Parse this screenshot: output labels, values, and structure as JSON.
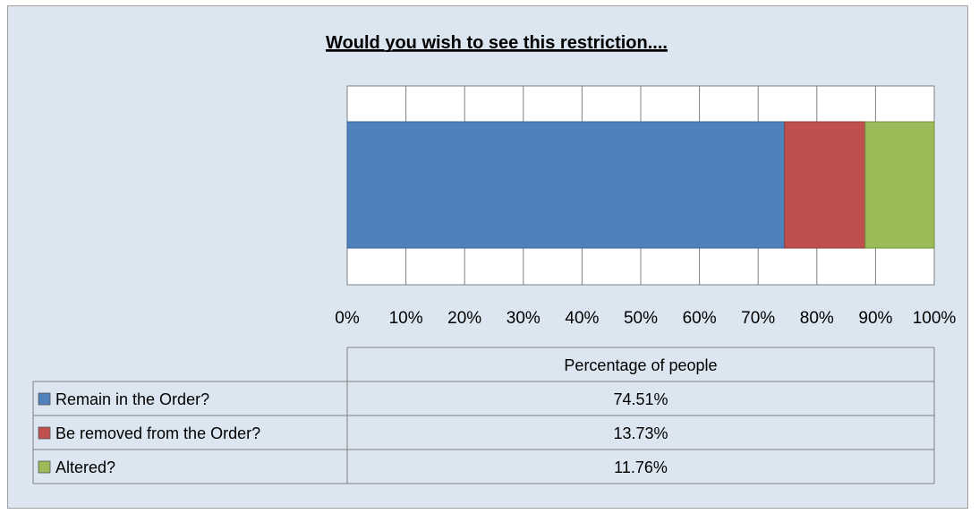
{
  "chart_data": {
    "type": "bar",
    "orientation": "horizontal-stacked",
    "title": "Would you wish to see this restriction....",
    "categories": [
      "Percentage of people"
    ],
    "series": [
      {
        "name": "Remain in the Order?",
        "values": [
          74.51
        ],
        "label": "74.51%",
        "color": "#4f81bd"
      },
      {
        "name": "Be removed from the Order?",
        "values": [
          13.73
        ],
        "label": "13.73%",
        "color": "#c0504d"
      },
      {
        "name": "Altered?",
        "values": [
          11.76
        ],
        "label": "11.76%",
        "color": "#9bbb59"
      }
    ],
    "xlim": [
      0,
      100
    ],
    "x_ticks": [
      "0%",
      "10%",
      "20%",
      "30%",
      "40%",
      "50%",
      "60%",
      "70%",
      "80%",
      "90%",
      "100%"
    ],
    "grid": true,
    "legend": "data-table-below"
  }
}
